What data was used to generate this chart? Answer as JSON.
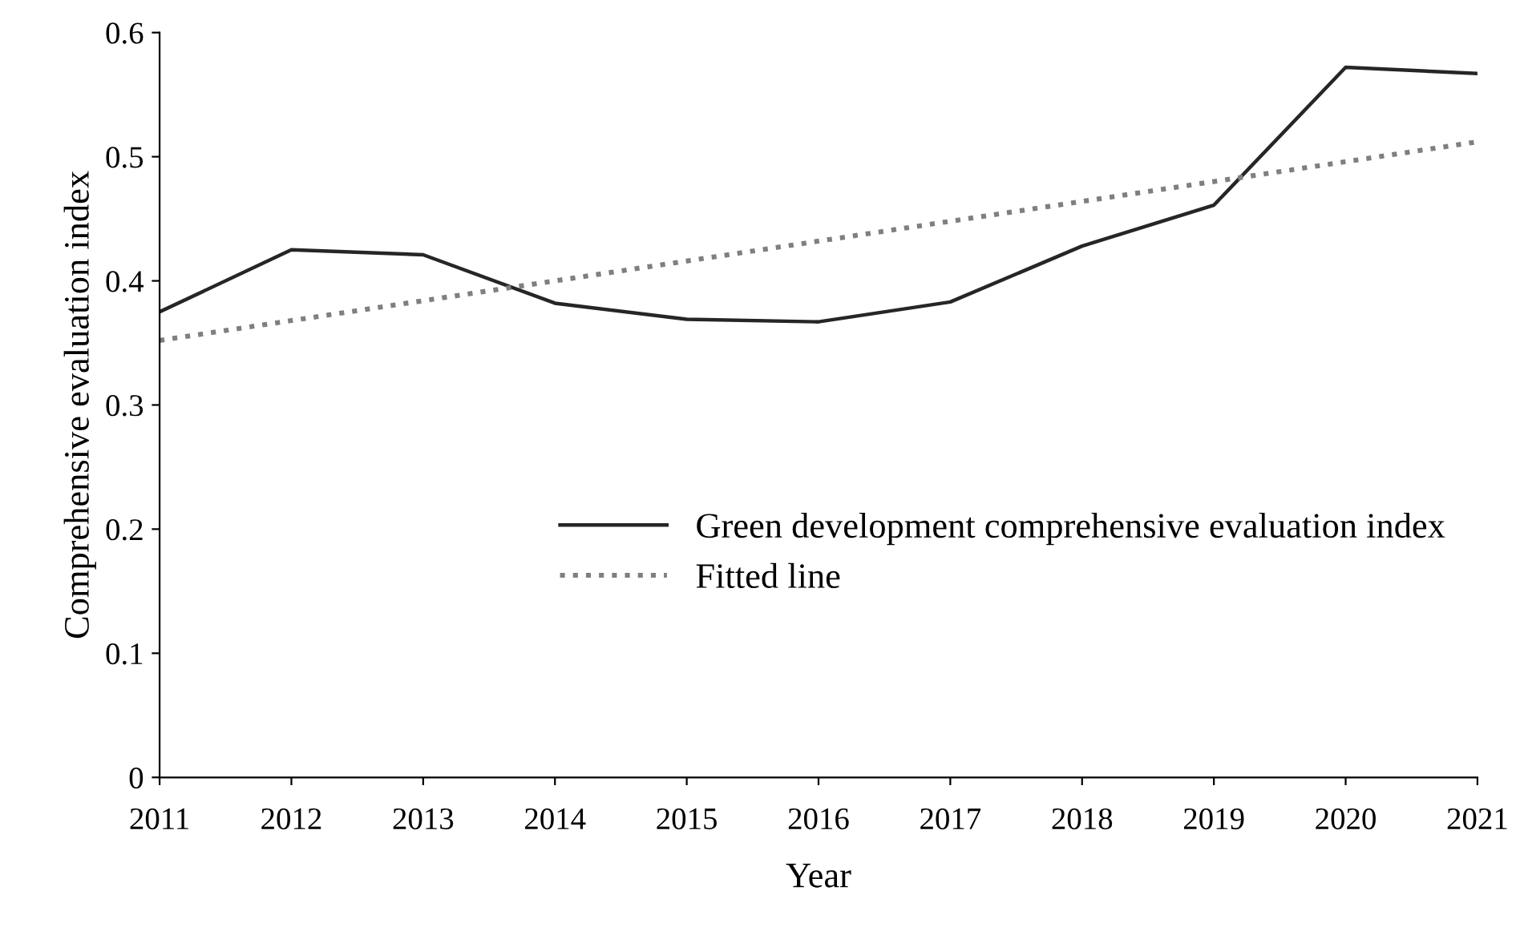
{
  "chart_data": {
    "type": "line",
    "xlabel": "Year",
    "ylabel": "Comprehensive evaluation index",
    "x": [
      2011,
      2012,
      2013,
      2014,
      2015,
      2016,
      2017,
      2018,
      2019,
      2020,
      2021
    ],
    "series": [
      {
        "name": "Green development comprehensive evaluation index",
        "color": "#262626",
        "line_style": "solid",
        "values": [
          0.375,
          0.425,
          0.421,
          0.382,
          0.369,
          0.367,
          0.383,
          0.428,
          0.461,
          0.572,
          0.567
        ]
      },
      {
        "name": "Fitted line",
        "color": "#7f7f7f",
        "line_style": "dotted",
        "x": [
          2011,
          2021
        ],
        "values": [
          0.352,
          0.512
        ]
      }
    ],
    "xlim": [
      2011,
      2021
    ],
    "xticks": [
      2011,
      2012,
      2013,
      2014,
      2015,
      2016,
      2017,
      2018,
      2019,
      2020,
      2021
    ],
    "ylim": [
      0,
      0.6
    ],
    "yticks": [
      {
        "value": 0,
        "label": "0"
      },
      0.1,
      0.2,
      0.3,
      0.4,
      0.5,
      0.6
    ],
    "grid": false,
    "legend": "right",
    "marker": "none"
  }
}
